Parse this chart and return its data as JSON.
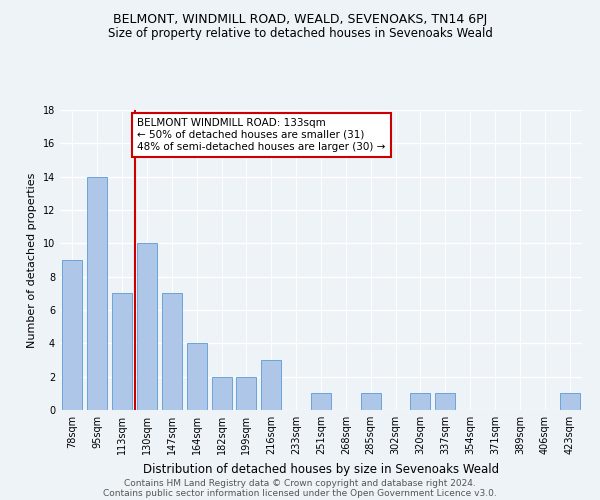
{
  "title": "BELMONT, WINDMILL ROAD, WEALD, SEVENOAKS, TN14 6PJ",
  "subtitle": "Size of property relative to detached houses in Sevenoaks Weald",
  "xlabel": "Distribution of detached houses by size in Sevenoaks Weald",
  "ylabel": "Number of detached properties",
  "categories": [
    "78sqm",
    "95sqm",
    "113sqm",
    "130sqm",
    "147sqm",
    "164sqm",
    "182sqm",
    "199sqm",
    "216sqm",
    "233sqm",
    "251sqm",
    "268sqm",
    "285sqm",
    "302sqm",
    "320sqm",
    "337sqm",
    "354sqm",
    "371sqm",
    "389sqm",
    "406sqm",
    "423sqm"
  ],
  "values": [
    9,
    14,
    7,
    10,
    7,
    4,
    2,
    2,
    3,
    0,
    1,
    0,
    1,
    0,
    1,
    1,
    0,
    0,
    0,
    0,
    1
  ],
  "bar_color": "#aec6e8",
  "bar_edge_color": "#5b9bd5",
  "vline_color": "#cc0000",
  "vline_x": 2.5,
  "ylim": [
    0,
    18
  ],
  "yticks": [
    0,
    2,
    4,
    6,
    8,
    10,
    12,
    14,
    16,
    18
  ],
  "annotation_box_text": "BELMONT WINDMILL ROAD: 133sqm\n← 50% of detached houses are smaller (31)\n48% of semi-detached houses are larger (30) →",
  "annotation_box_color": "#cc0000",
  "annotation_box_bg": "#ffffff",
  "footer1": "Contains HM Land Registry data © Crown copyright and database right 2024.",
  "footer2": "Contains public sector information licensed under the Open Government Licence v3.0.",
  "bg_color": "#eef3f8",
  "plot_bg_color": "#eef3f8",
  "grid_color": "#ffffff",
  "title_fontsize": 9,
  "subtitle_fontsize": 8.5,
  "xlabel_fontsize": 8.5,
  "ylabel_fontsize": 8,
  "tick_fontsize": 7,
  "annotation_fontsize": 7.5,
  "footer_fontsize": 6.5
}
